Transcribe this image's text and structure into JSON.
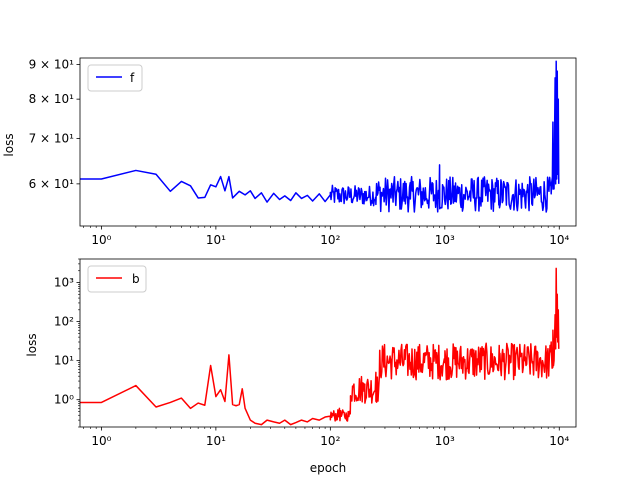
{
  "chart_data": [
    {
      "type": "line",
      "xscale": "log",
      "yscale": "log",
      "xlabel": "",
      "ylabel": "loss",
      "xlim": [
        0.65,
        14000
      ],
      "ylim": [
        52,
        92
      ],
      "x_ticks": [
        {
          "value": 1,
          "label": "10⁰"
        },
        {
          "value": 10,
          "label": "10¹"
        },
        {
          "value": 100,
          "label": "10²"
        },
        {
          "value": 1000,
          "label": "10³"
        },
        {
          "value": 10000,
          "label": "10⁴"
        }
      ],
      "y_ticks": [
        {
          "value": 60,
          "label": "6 × 10¹"
        },
        {
          "value": 70,
          "label": "7 × 10¹"
        },
        {
          "value": 80,
          "label": "8 × 10¹"
        },
        {
          "value": 90,
          "label": "9 × 10¹"
        }
      ],
      "legend": {
        "placement": "upper-left",
        "entries": [
          "f"
        ]
      },
      "series": [
        {
          "name": "f",
          "color": "#0000ff",
          "points": [
            [
              0.65,
              61
            ],
            [
              1,
              61
            ],
            [
              2,
              62.8
            ],
            [
              3,
              62
            ],
            [
              4,
              58.5
            ],
            [
              5,
              60.5
            ],
            [
              6,
              59.6
            ],
            [
              7,
              57.2
            ],
            [
              8,
              57.3
            ],
            [
              9,
              59.8
            ],
            [
              10,
              59.4
            ],
            [
              11,
              61.5
            ],
            [
              12,
              58.6
            ],
            [
              13,
              61.5
            ],
            [
              14,
              57.2
            ],
            [
              16,
              58.5
            ],
            [
              18,
              57.8
            ],
            [
              20,
              58.6
            ],
            [
              22,
              57.1
            ],
            [
              25,
              58.2
            ],
            [
              28,
              56.4
            ],
            [
              32,
              58.1
            ],
            [
              36,
              56.9
            ],
            [
              40,
              57.6
            ],
            [
              45,
              56.7
            ],
            [
              50,
              58.2
            ],
            [
              56,
              57.1
            ],
            [
              63,
              57.7
            ],
            [
              70,
              56.6
            ],
            [
              80,
              58
            ],
            [
              90,
              56.5
            ],
            [
              100,
              57.8
            ],
            [
              120,
              56.8
            ],
            [
              150,
              57.5
            ],
            [
              200,
              56.6
            ],
            [
              300,
              58.2
            ],
            [
              500,
              57
            ],
            [
              800,
              57.8
            ],
            [
              900,
              64
            ],
            [
              950,
              56.5
            ],
            [
              1500,
              57.5
            ],
            [
              3000,
              56.6
            ],
            [
              5000,
              57.4
            ],
            [
              7000,
              56.5
            ],
            [
              8500,
              58
            ],
            [
              8800,
              74
            ],
            [
              9000,
              59
            ],
            [
              9200,
              86
            ],
            [
              9300,
              60
            ],
            [
              9400,
              91
            ],
            [
              9500,
              61
            ],
            [
              9600,
              88
            ],
            [
              9700,
              62
            ],
            [
              9800,
              80
            ],
            [
              9900,
              60
            ]
          ],
          "noise": [
            {
              "from": 100,
              "to": 250,
              "low": 55.7,
              "high": 59.7
            },
            {
              "from": 250,
              "to": 9000,
              "low": 54.5,
              "high": 61.5
            }
          ]
        }
      ]
    },
    {
      "type": "line",
      "xscale": "log",
      "yscale": "log",
      "xlabel": "epoch",
      "ylabel": "loss",
      "xlim": [
        0.65,
        14000
      ],
      "ylim": [
        0.2,
        4000
      ],
      "x_ticks": [
        {
          "value": 1,
          "label": "10⁰"
        },
        {
          "value": 10,
          "label": "10¹"
        },
        {
          "value": 100,
          "label": "10²"
        },
        {
          "value": 1000,
          "label": "10³"
        },
        {
          "value": 10000,
          "label": "10⁴"
        }
      ],
      "y_ticks": [
        {
          "value": 1,
          "label": "10⁰"
        },
        {
          "value": 10,
          "label": "10¹"
        },
        {
          "value": 100,
          "label": "10²"
        },
        {
          "value": 1000,
          "label": "10³"
        }
      ],
      "legend": {
        "placement": "upper-left",
        "entries": [
          "b"
        ]
      },
      "series": [
        {
          "name": "b",
          "color": "#ff0000",
          "points": [
            [
              0.65,
              0.85
            ],
            [
              1,
              0.85
            ],
            [
              2,
              2.3
            ],
            [
              3,
              0.65
            ],
            [
              4,
              0.85
            ],
            [
              5,
              1.1
            ],
            [
              6,
              0.6
            ],
            [
              7,
              0.82
            ],
            [
              8,
              0.72
            ],
            [
              9,
              7.5
            ],
            [
              10,
              1.2
            ],
            [
              11,
              1.8
            ],
            [
              12,
              0.9
            ],
            [
              13,
              14
            ],
            [
              14,
              0.75
            ],
            [
              15,
              0.7
            ],
            [
              16,
              0.75
            ],
            [
              17,
              1.9
            ],
            [
              18,
              0.6
            ],
            [
              20,
              0.3
            ],
            [
              22,
              0.25
            ],
            [
              25,
              0.23
            ],
            [
              28,
              0.3
            ],
            [
              32,
              0.27
            ],
            [
              36,
              0.25
            ],
            [
              40,
              0.3
            ],
            [
              45,
              0.23
            ],
            [
              50,
              0.26
            ],
            [
              56,
              0.3
            ],
            [
              63,
              0.27
            ],
            [
              70,
              0.33
            ],
            [
              80,
              0.3
            ],
            [
              90,
              0.36
            ],
            [
              100,
              0.38
            ],
            [
              120,
              0.6
            ],
            [
              150,
              1
            ],
            [
              200,
              2.5
            ],
            [
              250,
              5
            ],
            [
              300,
              8
            ],
            [
              500,
              9
            ],
            [
              1000,
              9
            ],
            [
              3000,
              10
            ],
            [
              5000,
              10
            ],
            [
              8000,
              9
            ],
            [
              8500,
              30
            ],
            [
              8800,
              60
            ],
            [
              9000,
              10
            ],
            [
              9200,
              150
            ],
            [
              9300,
              20
            ],
            [
              9400,
              2300
            ],
            [
              9500,
              40
            ],
            [
              9600,
              500
            ],
            [
              9700,
              30
            ],
            [
              9800,
              200
            ],
            [
              9900,
              20
            ]
          ],
          "noise": [
            {
              "from": 100,
              "to": 150,
              "low": 0.28,
              "high": 0.55
            },
            {
              "from": 150,
              "to": 270,
              "low": 0.8,
              "high": 4.5
            },
            {
              "from": 270,
              "to": 9000,
              "low": 3.2,
              "high": 28
            }
          ]
        }
      ]
    }
  ]
}
